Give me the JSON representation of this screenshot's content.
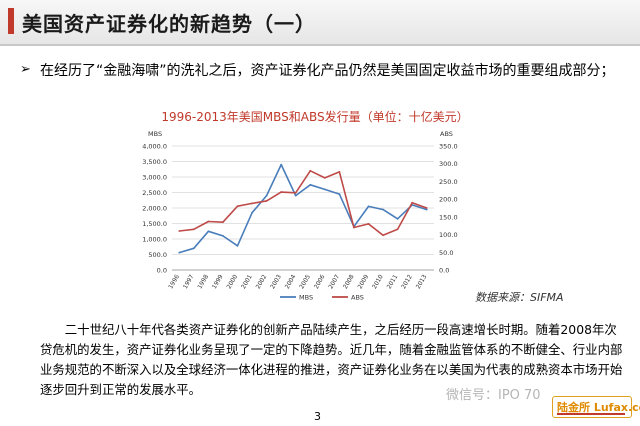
{
  "header": {
    "title": "美国资产证券化的新趋势（一）"
  },
  "bullet": {
    "arrow": "➢",
    "text": "在经历了“金融海啸”的洗礼之后，资产证券化产品仍然是美国固定收益市场的重要组成部分；"
  },
  "chart_data": {
    "type": "line",
    "title": "1996-2013年美国MBS和ABS发行量（单位：十亿美元）",
    "categories": [
      "1996",
      "1997",
      "1998",
      "1999",
      "2000",
      "2001",
      "2002",
      "2003",
      "2004",
      "2005",
      "2006",
      "2007",
      "2008",
      "2009",
      "2010",
      "2011",
      "2012",
      "2013"
    ],
    "left_axis": {
      "label": "MBS",
      "ylim": [
        0,
        4000
      ],
      "ticks": [
        "0.0",
        "500.0",
        "1,000.0",
        "1,500.0",
        "2,000.0",
        "2,500.0",
        "3,000.0",
        "3,500.0",
        "4,000.0"
      ]
    },
    "right_axis": {
      "label": "ABS",
      "ylim": [
        0,
        350
      ],
      "ticks": [
        "0.0",
        "50.0",
        "100.0",
        "150.0",
        "200.0",
        "250.0",
        "300.0",
        "350.0"
      ]
    },
    "series": [
      {
        "name": "MBS",
        "axis": "left",
        "color": "#4a7ebb",
        "values": [
          560,
          700,
          1250,
          1100,
          780,
          1850,
          2400,
          3400,
          2400,
          2750,
          2600,
          2450,
          1400,
          2050,
          1950,
          1650,
          2100,
          1950
        ]
      },
      {
        "name": "ABS",
        "axis": "right",
        "color": "#be4b48",
        "values": [
          110,
          115,
          137,
          135,
          180,
          188,
          195,
          220,
          218,
          280,
          260,
          277,
          120,
          130,
          98,
          115,
          190,
          175
        ]
      }
    ]
  },
  "source": "数据来源：SIFMA",
  "paragraph": "二十世纪八十年代各类资产证券化的创新产品陆续产生，之后经历一段高速增长时期。随着2008年次贷危机的发生，资产证券化业务呈现了一定的下降趋势。近几年，随着金融监管体系的不断健全、行业内部业务规范的不断深入以及全球经济一体化进程的推进，资产证券化业务在以美国为代表的成熟资本市场开始逐步回升到正常的发展水平。",
  "page_number": "3",
  "watermark": "微信号：IPO 70",
  "logo": {
    "text": "陆金所 Lufax.com"
  }
}
